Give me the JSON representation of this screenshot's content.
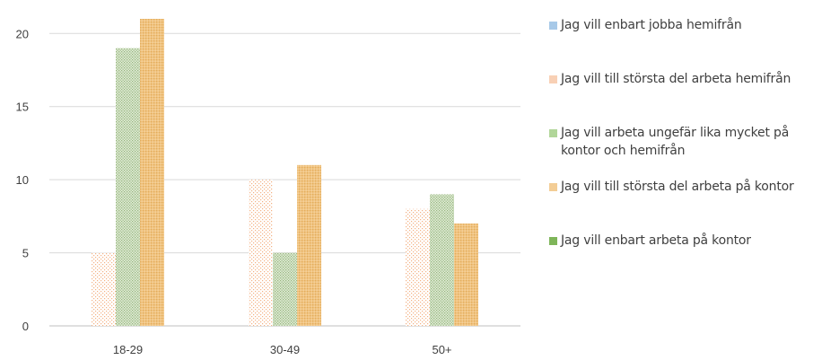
{
  "chart_data": {
    "type": "bar",
    "categories": [
      "18-29",
      "30-49",
      "50+"
    ],
    "series": [
      {
        "name": "Jag vill enbart jobba hemifrån",
        "values": [
          0,
          0,
          0
        ],
        "color": "#9dc3e6"
      },
      {
        "name": "Jag vill till största del arbeta hemifrån",
        "values": [
          5,
          10,
          8
        ],
        "color": "#f4b183"
      },
      {
        "name": "Jag vill arbeta ungefär lika mycket på kontor och hemifrån",
        "values": [
          19,
          5,
          9
        ],
        "color": "#a9d18e"
      },
      {
        "name": "Jag vill till största del arbeta på kontor",
        "values": [
          21,
          11,
          7
        ],
        "color": "#f2c88a"
      },
      {
        "name": "Jag vill enbart arbeta på kontor",
        "values": [
          0,
          0,
          0
        ],
        "color": "#70ad47"
      }
    ],
    "yticks": [
      "0",
      "5",
      "10",
      "15",
      "20"
    ],
    "ylim": [
      0,
      21
    ],
    "grid": true,
    "legend_position": "right"
  }
}
